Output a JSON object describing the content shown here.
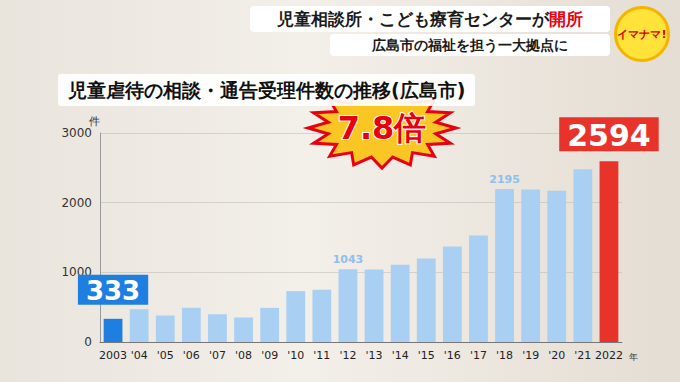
{
  "header": {
    "title_parts": [
      {
        "text": "児童相談所・こども療育センターが",
        "color": "#1a1a1a"
      },
      {
        "text": "開所",
        "color": "#e60012"
      }
    ],
    "subtitle": "広島市の福祉を担う一大拠点に",
    "logo": "イマナマ!"
  },
  "chart_data": {
    "type": "bar",
    "title": "児童虐待の相談・通告受理件数の推移(広島市)",
    "y_label": "件",
    "x_label": "年",
    "categories": [
      "2003",
      "'04",
      "'05",
      "'06",
      "'07",
      "'08",
      "'09",
      "'10",
      "'11",
      "'12",
      "'13",
      "'14",
      "'15",
      "'16",
      "'17",
      "'18",
      "'19",
      "'20",
      "'21",
      "2022"
    ],
    "values": [
      333,
      470,
      380,
      490,
      400,
      350,
      490,
      730,
      750,
      1043,
      1040,
      1110,
      1200,
      1370,
      1530,
      2195,
      2190,
      2170,
      2480,
      2594
    ],
    "value_labels": [
      "333",
      null,
      null,
      null,
      null,
      null,
      null,
      null,
      null,
      "1043",
      null,
      null,
      null,
      null,
      null,
      "2195",
      null,
      null,
      null,
      "2594"
    ],
    "colors": [
      "#1f7fe0",
      "#a9cff2",
      "#a9cff2",
      "#a9cff2",
      "#a9cff2",
      "#a9cff2",
      "#a9cff2",
      "#a9cff2",
      "#a9cff2",
      "#a9cff2",
      "#a9cff2",
      "#a9cff2",
      "#a9cff2",
      "#a9cff2",
      "#a9cff2",
      "#a9cff2",
      "#a9cff2",
      "#a9cff2",
      "#a9cff2",
      "#e8332a"
    ],
    "annotations": [
      {
        "text": "7.8倍"
      }
    ],
    "ylim": [
      0,
      3000
    ],
    "yticks": [
      0,
      1000,
      2000,
      3000
    ],
    "grid": true
  }
}
